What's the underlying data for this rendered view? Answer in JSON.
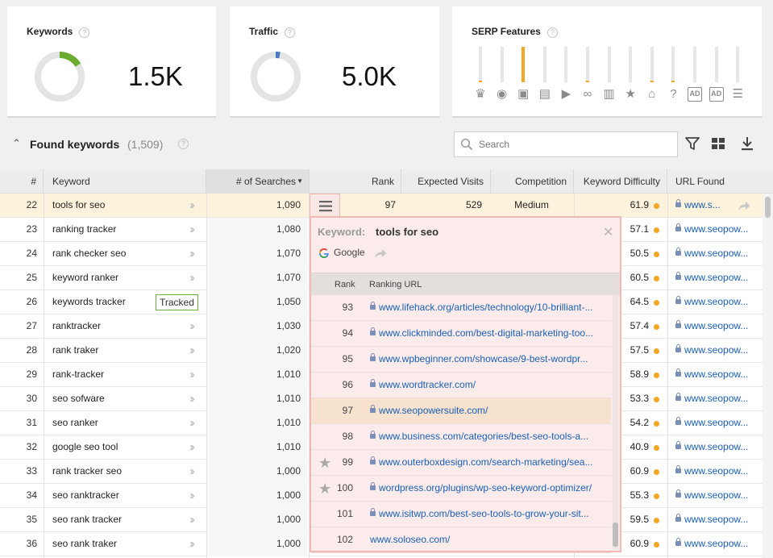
{
  "cards": {
    "keywords": {
      "title": "Keywords",
      "value": "1.5K",
      "donut_fraction": 0.16,
      "donut_color": "#6aab30"
    },
    "traffic": {
      "title": "Traffic",
      "value": "5.0K",
      "donut_fraction": 0.03,
      "donut_color": "#4a78c2"
    },
    "serp": {
      "title": "SERP Features",
      "features": [
        {
          "icon": "crown-icon",
          "level": 0.05
        },
        {
          "icon": "map-pin-icon",
          "level": 0
        },
        {
          "icon": "image-icon",
          "level": 1
        },
        {
          "icon": "news-icon",
          "level": 0
        },
        {
          "icon": "video-play-icon",
          "level": 0
        },
        {
          "icon": "link-icon",
          "level": 0.05
        },
        {
          "icon": "knowledge-panel-icon",
          "level": 0
        },
        {
          "icon": "star-icon",
          "level": 0
        },
        {
          "icon": "graduation-cap-icon",
          "level": 0.05
        },
        {
          "icon": "question-icon",
          "level": 0.05
        },
        {
          "icon": "ad-top-icon",
          "level": 0
        },
        {
          "icon": "ad-bottom-icon",
          "level": 0
        },
        {
          "icon": "shopping-cart-icon",
          "level": 0
        }
      ]
    }
  },
  "section": {
    "title": "Found keywords",
    "count": "(1,509)"
  },
  "search": {
    "placeholder": "Search"
  },
  "colors": {
    "accent_orange": "#f5a623",
    "kd_dot": "#f5a623",
    "popup_border": "#f1b9b3",
    "link": "#1a5fb4"
  },
  "table": {
    "columns": [
      "#",
      "Keyword",
      "# of Searches",
      "Rank",
      "Expected Visits",
      "Competition",
      "Keyword Difficulty",
      "URL Found"
    ],
    "rows": [
      {
        "num": "22",
        "keyword": "tools for seo",
        "searches": "1,090",
        "rank": "97",
        "visits": "529",
        "competition": "Medium",
        "kd": "61.9",
        "url": "www.s..."
      },
      {
        "num": "23",
        "keyword": "ranking tracker",
        "searches": "1,080",
        "kd": "57.1",
        "url": "www.seopow..."
      },
      {
        "num": "24",
        "keyword": "rank checker seo",
        "searches": "1,070",
        "kd": "50.5",
        "url": "www.seopow..."
      },
      {
        "num": "25",
        "keyword": "keyword ranker",
        "searches": "1,070",
        "kd": "60.5",
        "url": "www.seopow..."
      },
      {
        "num": "26",
        "keyword": "keywords tracker",
        "searches": "1,050",
        "kd": "64.5",
        "url": "www.seopow...",
        "tracked": "Tracked"
      },
      {
        "num": "27",
        "keyword": "ranktracker",
        "searches": "1,030",
        "kd": "57.4",
        "url": "www.seopow..."
      },
      {
        "num": "28",
        "keyword": "rank traker",
        "searches": "1,020",
        "kd": "57.5",
        "url": "www.seopow..."
      },
      {
        "num": "29",
        "keyword": "rank-tracker",
        "searches": "1,010",
        "kd": "58.9",
        "url": "www.seopow..."
      },
      {
        "num": "30",
        "keyword": "seo sofware",
        "searches": "1,010",
        "kd": "53.3",
        "url": "www.seopow..."
      },
      {
        "num": "31",
        "keyword": "seo ranker",
        "searches": "1,010",
        "kd": "54.2",
        "url": "www.seopow..."
      },
      {
        "num": "32",
        "keyword": "google seo tool",
        "searches": "1,010",
        "kd": "40.9",
        "url": "www.seopow..."
      },
      {
        "num": "33",
        "keyword": "rank tracker seo",
        "searches": "1,000",
        "kd": "60.9",
        "url": "www.seopow..."
      },
      {
        "num": "34",
        "keyword": "seo ranktracker",
        "searches": "1,000",
        "kd": "55.3",
        "url": "www.seopow..."
      },
      {
        "num": "35",
        "keyword": "seo rank tracker",
        "searches": "1,000",
        "kd": "59.5",
        "url": "www.seopow..."
      },
      {
        "num": "36",
        "keyword": "seo rank traker",
        "searches": "1,000",
        "kd": "60.9",
        "url": "www.seopow..."
      }
    ]
  },
  "popup": {
    "label": "Keyword:",
    "keyword": "tools for seo",
    "engine": "Google",
    "col_rank": "Rank",
    "col_url": "Ranking URL",
    "rows": [
      {
        "rank": "93",
        "url": "www.lifehack.org/articles/technology/10-brilliant-...",
        "lock": true
      },
      {
        "rank": "94",
        "url": "www.clickminded.com/best-digital-marketing-too...",
        "lock": true
      },
      {
        "rank": "95",
        "url": "www.wpbeginner.com/showcase/9-best-wordpr...",
        "lock": true
      },
      {
        "rank": "96",
        "url": "www.wordtracker.com/",
        "lock": true
      },
      {
        "rank": "97",
        "url": "www.seopowersuite.com/",
        "lock": true,
        "highlight": true
      },
      {
        "rank": "98",
        "url": "www.business.com/categories/best-seo-tools-a...",
        "lock": true
      },
      {
        "rank": "99",
        "url": "www.outerboxdesign.com/search-marketing/sea...",
        "lock": true,
        "star": true
      },
      {
        "rank": "100",
        "url": "wordpress.org/plugins/wp-seo-keyword-optimizer/",
        "lock": true,
        "star": true
      },
      {
        "rank": "101",
        "url": "www.isitwp.com/best-seo-tools-to-grow-your-sit...",
        "lock": true
      },
      {
        "rank": "102",
        "url": "www.soloseo.com/",
        "lock": false
      }
    ]
  }
}
